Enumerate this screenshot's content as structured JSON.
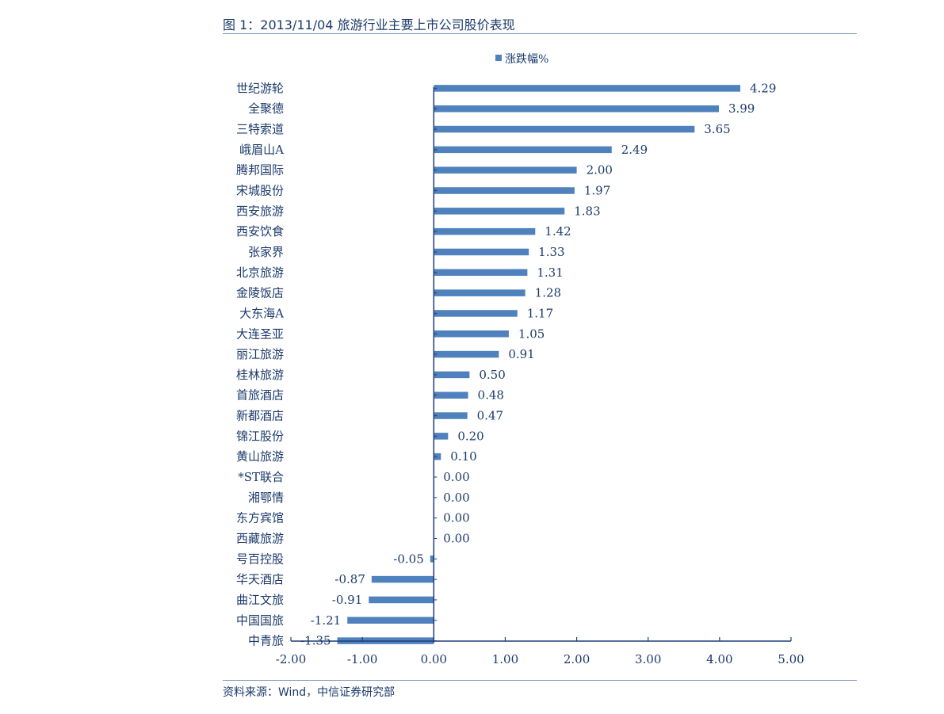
{
  "figure_title": "图 1：2013/11/04 旅游行业主要上市公司股价表现",
  "source_note": "资料来源：Wind，中信证券研究部",
  "colors": {
    "bar": "#4f81bd",
    "text": "#1b3a6b",
    "axis": "#1f3f7a"
  },
  "chart_data": {
    "type": "bar",
    "orientation": "horizontal",
    "title": "",
    "xlabel": "",
    "ylabel": "",
    "legend": {
      "entries": [
        "涨跌幅%"
      ],
      "placement": "top-center"
    },
    "xlim": [
      -2,
      5
    ],
    "x_ticks": [
      "-2.00",
      "-1.00",
      "0.00",
      "1.00",
      "2.00",
      "3.00",
      "4.00",
      "5.00"
    ],
    "categories": [
      "世纪游轮",
      "全聚德",
      "三特索道",
      "峨眉山A",
      "腾邦国际",
      "宋城股份",
      "西安旅游",
      "西安饮食",
      "张家界",
      "北京旅游",
      "金陵饭店",
      "大东海A",
      "大连圣亚",
      "丽江旅游",
      "桂林旅游",
      "首旅酒店",
      "新都酒店",
      "锦江股份",
      "黄山旅游",
      "*ST联合",
      "湘鄂情",
      "东方宾馆",
      "西藏旅游",
      "号百控股",
      "华天酒店",
      "曲江文旅",
      "中国国旅",
      "中青旅"
    ],
    "values": [
      4.29,
      3.99,
      3.65,
      2.49,
      2.0,
      1.97,
      1.83,
      1.42,
      1.33,
      1.31,
      1.28,
      1.17,
      1.05,
      0.91,
      0.5,
      0.48,
      0.47,
      0.2,
      0.1,
      0.0,
      0.0,
      0.0,
      0.0,
      -0.05,
      -0.87,
      -0.91,
      -1.21,
      -1.35
    ],
    "value_labels": [
      "4.29",
      "3.99",
      "3.65",
      "2.49",
      "2.00",
      "1.97",
      "1.83",
      "1.42",
      "1.33",
      "1.31",
      "1.28",
      "1.17",
      "1.05",
      "0.91",
      "0.50",
      "0.48",
      "0.47",
      "0.20",
      "0.10",
      "0.00",
      "0.00",
      "0.00",
      "0.00",
      "-0.05",
      "-0.87",
      "-0.91",
      "-1.21",
      "-1.35"
    ],
    "grid": false
  }
}
